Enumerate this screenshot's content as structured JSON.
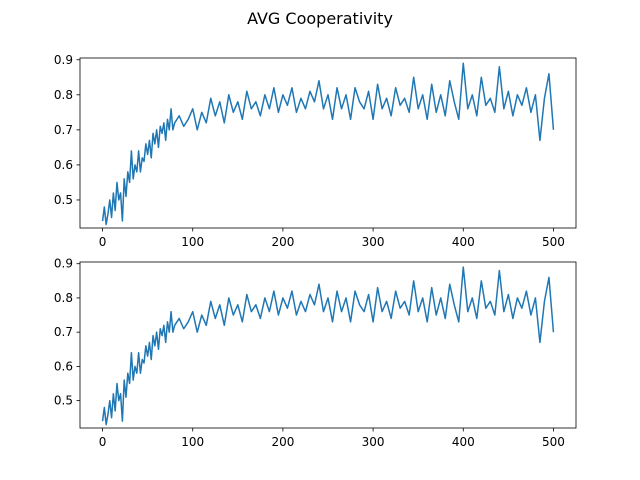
{
  "chart_data": {
    "title": "AVG Cooperativity",
    "type": "line",
    "line_color": "#1f77b4",
    "axis_color": "#000000",
    "background": "#ffffff",
    "grid": false,
    "legend": "none",
    "panels": [
      {
        "xlim": [
          -25,
          525
        ],
        "ylim": [
          0.42,
          0.905
        ],
        "xticks": [
          0,
          100,
          200,
          300,
          400,
          500
        ],
        "yticks": [
          0.5,
          0.6,
          0.7,
          0.8,
          0.9
        ],
        "xtick_labels": [
          "0",
          "100",
          "200",
          "300",
          "400",
          "500"
        ],
        "ytick_labels": [
          "0.5",
          "0.6",
          "0.7",
          "0.8",
          "0.9"
        ],
        "series": [
          {
            "x": [
              0,
              2,
              4,
              6,
              8,
              10,
              12,
              14,
              16,
              18,
              20,
              22,
              24,
              26,
              28,
              30,
              32,
              34,
              36,
              38,
              40,
              42,
              44,
              46,
              48,
              50,
              52,
              54,
              56,
              58,
              60,
              62,
              64,
              66,
              68,
              70,
              72,
              74,
              76,
              78,
              80,
              85,
              90,
              95,
              100,
              105,
              110,
              115,
              120,
              125,
              130,
              135,
              140,
              145,
              150,
              155,
              160,
              165,
              170,
              175,
              180,
              185,
              190,
              195,
              200,
              205,
              210,
              215,
              220,
              225,
              230,
              235,
              240,
              245,
              250,
              255,
              260,
              265,
              270,
              275,
              280,
              285,
              290,
              295,
              300,
              305,
              310,
              315,
              320,
              325,
              330,
              335,
              340,
              345,
              350,
              355,
              360,
              365,
              370,
              375,
              380,
              385,
              390,
              395,
              400,
              405,
              410,
              415,
              420,
              425,
              430,
              435,
              440,
              445,
              450,
              455,
              460,
              465,
              470,
              475,
              480,
              485,
              490,
              495,
              500
            ],
            "y": [
              0.44,
              0.48,
              0.43,
              0.46,
              0.5,
              0.45,
              0.52,
              0.47,
              0.55,
              0.5,
              0.52,
              0.44,
              0.56,
              0.51,
              0.58,
              0.55,
              0.64,
              0.56,
              0.6,
              0.58,
              0.64,
              0.58,
              0.62,
              0.61,
              0.66,
              0.63,
              0.67,
              0.62,
              0.69,
              0.66,
              0.7,
              0.65,
              0.71,
              0.69,
              0.72,
              0.67,
              0.73,
              0.7,
              0.76,
              0.7,
              0.72,
              0.74,
              0.71,
              0.73,
              0.76,
              0.7,
              0.75,
              0.72,
              0.79,
              0.74,
              0.78,
              0.72,
              0.8,
              0.75,
              0.78,
              0.73,
              0.81,
              0.76,
              0.78,
              0.74,
              0.8,
              0.76,
              0.82,
              0.75,
              0.8,
              0.77,
              0.82,
              0.75,
              0.79,
              0.76,
              0.81,
              0.78,
              0.84,
              0.76,
              0.8,
              0.73,
              0.82,
              0.76,
              0.8,
              0.73,
              0.82,
              0.78,
              0.76,
              0.81,
              0.73,
              0.83,
              0.76,
              0.79,
              0.74,
              0.82,
              0.77,
              0.79,
              0.75,
              0.85,
              0.76,
              0.8,
              0.73,
              0.83,
              0.75,
              0.8,
              0.74,
              0.84,
              0.78,
              0.73,
              0.89,
              0.76,
              0.8,
              0.74,
              0.85,
              0.77,
              0.79,
              0.75,
              0.88,
              0.76,
              0.81,
              0.74,
              0.8,
              0.77,
              0.82,
              0.75,
              0.8,
              0.67,
              0.79,
              0.86,
              0.7
            ]
          }
        ]
      },
      {
        "xlim": [
          -25,
          525
        ],
        "ylim": [
          0.42,
          0.905
        ],
        "xticks": [
          0,
          100,
          200,
          300,
          400,
          500
        ],
        "yticks": [
          0.5,
          0.6,
          0.7,
          0.8,
          0.9
        ],
        "xtick_labels": [
          "0",
          "100",
          "200",
          "300",
          "400",
          "500"
        ],
        "ytick_labels": [
          "0.5",
          "0.6",
          "0.7",
          "0.8",
          "0.9"
        ],
        "series": [
          {
            "x": [
              0,
              2,
              4,
              6,
              8,
              10,
              12,
              14,
              16,
              18,
              20,
              22,
              24,
              26,
              28,
              30,
              32,
              34,
              36,
              38,
              40,
              42,
              44,
              46,
              48,
              50,
              52,
              54,
              56,
              58,
              60,
              62,
              64,
              66,
              68,
              70,
              72,
              74,
              76,
              78,
              80,
              85,
              90,
              95,
              100,
              105,
              110,
              115,
              120,
              125,
              130,
              135,
              140,
              145,
              150,
              155,
              160,
              165,
              170,
              175,
              180,
              185,
              190,
              195,
              200,
              205,
              210,
              215,
              220,
              225,
              230,
              235,
              240,
              245,
              250,
              255,
              260,
              265,
              270,
              275,
              280,
              285,
              290,
              295,
              300,
              305,
              310,
              315,
              320,
              325,
              330,
              335,
              340,
              345,
              350,
              355,
              360,
              365,
              370,
              375,
              380,
              385,
              390,
              395,
              400,
              405,
              410,
              415,
              420,
              425,
              430,
              435,
              440,
              445,
              450,
              455,
              460,
              465,
              470,
              475,
              480,
              485,
              490,
              495,
              500
            ],
            "y": [
              0.44,
              0.48,
              0.43,
              0.46,
              0.5,
              0.45,
              0.52,
              0.47,
              0.55,
              0.5,
              0.52,
              0.44,
              0.56,
              0.51,
              0.58,
              0.55,
              0.64,
              0.56,
              0.6,
              0.58,
              0.64,
              0.58,
              0.62,
              0.61,
              0.66,
              0.63,
              0.67,
              0.62,
              0.69,
              0.66,
              0.7,
              0.65,
              0.71,
              0.69,
              0.72,
              0.67,
              0.73,
              0.7,
              0.76,
              0.7,
              0.72,
              0.74,
              0.71,
              0.73,
              0.76,
              0.7,
              0.75,
              0.72,
              0.79,
              0.74,
              0.78,
              0.72,
              0.8,
              0.75,
              0.78,
              0.73,
              0.81,
              0.76,
              0.78,
              0.74,
              0.8,
              0.76,
              0.82,
              0.75,
              0.8,
              0.77,
              0.82,
              0.75,
              0.79,
              0.76,
              0.81,
              0.78,
              0.84,
              0.76,
              0.8,
              0.73,
              0.82,
              0.76,
              0.8,
              0.73,
              0.82,
              0.78,
              0.76,
              0.81,
              0.73,
              0.83,
              0.76,
              0.79,
              0.74,
              0.82,
              0.77,
              0.79,
              0.75,
              0.85,
              0.76,
              0.8,
              0.73,
              0.83,
              0.75,
              0.8,
              0.74,
              0.84,
              0.78,
              0.73,
              0.89,
              0.76,
              0.8,
              0.74,
              0.85,
              0.77,
              0.79,
              0.75,
              0.88,
              0.76,
              0.81,
              0.74,
              0.8,
              0.77,
              0.82,
              0.75,
              0.8,
              0.67,
              0.79,
              0.86,
              0.7
            ]
          }
        ]
      }
    ]
  }
}
